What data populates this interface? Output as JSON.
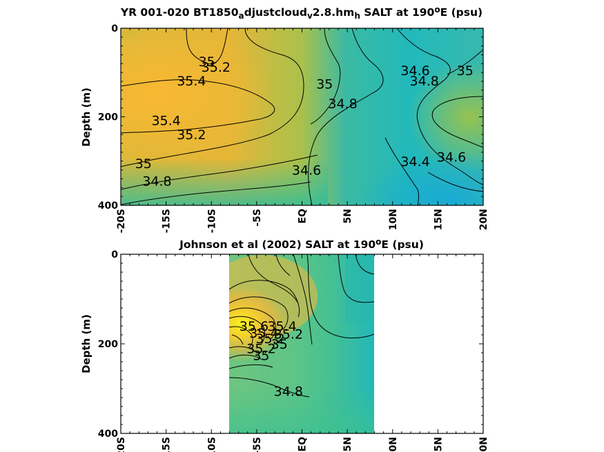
{
  "chart_data": [
    {
      "type": "heatmap",
      "title_parts": [
        "YR 001-020 BT1850",
        "a",
        "djustcloud",
        "v",
        "2.8.hm",
        "h",
        " SALT at 190",
        "o",
        "E (psu)"
      ],
      "ylabel": "Depth (m)",
      "xlim": [
        -20,
        20
      ],
      "ylim": [
        0,
        400
      ],
      "x_ticks": [
        -20,
        -15,
        -10,
        -5,
        0,
        5,
        10,
        15,
        20
      ],
      "x_tick_labels": [
        "-20S",
        "-15S",
        "-10S",
        "-5S",
        "EQ",
        "5N",
        "10N",
        "15N",
        "20N"
      ],
      "y_ticks": [
        0,
        200,
        400
      ],
      "y_tick_labels": [
        "0",
        "200",
        "400"
      ],
      "data_extent_x": [
        -20,
        20
      ],
      "colormap": "parula",
      "color_range": [
        34.2,
        35.8
      ],
      "contour_labels": [
        {
          "text": "35",
          "x": -10.5,
          "y": 75
        },
        {
          "text": "35.2",
          "x": -9.5,
          "y": 87
        },
        {
          "text": "35.4",
          "x": -12.2,
          "y": 118
        },
        {
          "text": "35.4",
          "x": -15,
          "y": 208
        },
        {
          "text": "35.2",
          "x": -12.2,
          "y": 240
        },
        {
          "text": "35",
          "x": -17.5,
          "y": 305
        },
        {
          "text": "34.8",
          "x": -16,
          "y": 345
        },
        {
          "text": "35",
          "x": 2.5,
          "y": 125
        },
        {
          "text": "34.8",
          "x": 4.5,
          "y": 170
        },
        {
          "text": "34.6",
          "x": 0.5,
          "y": 320
        },
        {
          "text": "34.6",
          "x": 12.5,
          "y": 95
        },
        {
          "text": "34.8",
          "x": 13.5,
          "y": 118
        },
        {
          "text": "35",
          "x": 18,
          "y": 95
        },
        {
          "text": "34.4",
          "x": 12.5,
          "y": 300
        },
        {
          "text": "34.6",
          "x": 16.5,
          "y": 290
        }
      ]
    },
    {
      "type": "heatmap",
      "title_parts": [
        "Johnson et al (2002) SALT at 190",
        "o",
        "E (psu)"
      ],
      "ylabel": "Depth (m)",
      "xlim": [
        -20,
        20
      ],
      "ylim": [
        0,
        400
      ],
      "x_ticks": [
        -20,
        -15,
        -10,
        -5,
        0,
        5,
        10,
        15,
        20
      ],
      "x_tick_labels": [
        "-20S",
        "-15S",
        "-10S",
        "-5S",
        "EQ",
        "5N",
        "10N",
        "15N",
        "20N"
      ],
      "y_ticks": [
        0,
        200,
        400
      ],
      "y_tick_labels": [
        "0",
        "200",
        "400"
      ],
      "data_extent_x": [
        -8,
        8
      ],
      "colormap": "parula",
      "color_range": [
        34.2,
        35.8
      ],
      "contour_labels": [
        {
          "text": "35.6",
          "x": -5.3,
          "y": 160
        },
        {
          "text": "35.4",
          "x": -4.2,
          "y": 175
        },
        {
          "text": "35.2",
          "x": -3.5,
          "y": 188
        },
        {
          "text": "35",
          "x": -2.5,
          "y": 200
        },
        {
          "text": "35.4",
          "x": -2.2,
          "y": 160
        },
        {
          "text": "35.2",
          "x": -1.5,
          "y": 178
        },
        {
          "text": "35.2",
          "x": -4.5,
          "y": 210
        },
        {
          "text": "35",
          "x": -4.5,
          "y": 225
        },
        {
          "text": "34.8",
          "x": -1.5,
          "y": 305
        }
      ]
    }
  ]
}
